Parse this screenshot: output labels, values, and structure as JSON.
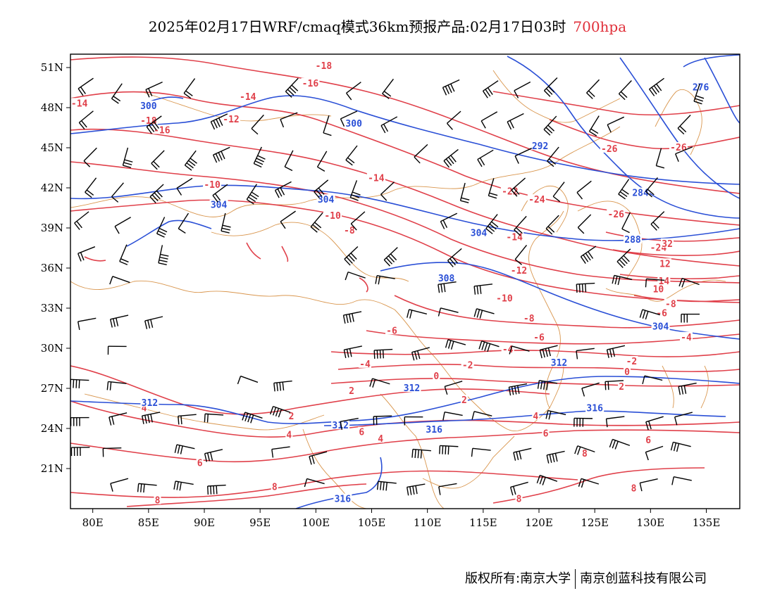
{
  "title": {
    "main": "2025年02月17日WRF/cmaq模式36km预报产品:02月17日03时",
    "level": "700hpa"
  },
  "colors": {
    "temperature": "#e0404a",
    "height": "#2a4fd6",
    "boundary": "#d9964e",
    "wind": "#000000"
  },
  "map": {
    "lon_range": [
      78,
      138
    ],
    "lat_range": [
      18,
      52
    ],
    "x_ticks": [
      "80E",
      "85E",
      "90E",
      "95E",
      "100E",
      "105E",
      "110E",
      "115E",
      "120E",
      "125E",
      "130E",
      "135E"
    ],
    "y_ticks": [
      "51N",
      "48N",
      "45N",
      "42N",
      "39N",
      "36N",
      "33N",
      "30N",
      "27N",
      "24N",
      "21N"
    ],
    "temperature_labels": [
      {
        "text": "-18",
        "lon": 100.7,
        "lat": 51.1
      },
      {
        "text": "-16",
        "lon": 99.5,
        "lat": 49.8
      },
      {
        "text": "-14",
        "lon": 93.9,
        "lat": 48.8
      },
      {
        "text": "-14",
        "lon": 78.8,
        "lat": 48.3
      },
      {
        "text": "-12",
        "lon": 92.4,
        "lat": 47.1
      },
      {
        "text": "-18",
        "lon": 85.0,
        "lat": 47.0
      },
      {
        "text": "-16",
        "lon": 86.2,
        "lat": 46.3
      },
      {
        "text": "-14",
        "lon": 105.4,
        "lat": 42.7
      },
      {
        "text": "-10",
        "lon": 90.7,
        "lat": 42.2
      },
      {
        "text": "-10",
        "lon": 101.5,
        "lat": 39.9
      },
      {
        "text": "-8",
        "lon": 103.0,
        "lat": 38.8
      },
      {
        "text": "-22",
        "lon": 117.4,
        "lat": 41.7
      },
      {
        "text": "-24",
        "lon": 119.8,
        "lat": 41.1
      },
      {
        "text": "-26",
        "lon": 126.3,
        "lat": 44.9
      },
      {
        "text": "-26",
        "lon": 132.5,
        "lat": 45.0
      },
      {
        "text": "-26",
        "lon": 126.9,
        "lat": 40.0
      },
      {
        "text": "-14",
        "lon": 117.8,
        "lat": 38.3
      },
      {
        "text": "-24",
        "lon": 130.7,
        "lat": 37.5
      },
      {
        "text": "-12",
        "lon": 118.2,
        "lat": 35.8
      },
      {
        "text": "-10",
        "lon": 116.9,
        "lat": 33.7
      },
      {
        "text": "-8",
        "lon": 119.1,
        "lat": 32.2
      },
      {
        "text": "-6",
        "lon": 120.0,
        "lat": 30.8
      },
      {
        "text": "-6",
        "lon": 106.8,
        "lat": 31.3
      },
      {
        "text": "-4",
        "lon": 117.2,
        "lat": 29.9
      },
      {
        "text": "-4",
        "lon": 104.4,
        "lat": 28.8
      },
      {
        "text": "-2",
        "lon": 113.6,
        "lat": 28.7
      },
      {
        "text": "-2",
        "lon": 128.3,
        "lat": 29.0
      },
      {
        "text": "0",
        "lon": 110.8,
        "lat": 27.9
      },
      {
        "text": "0",
        "lon": 127.9,
        "lat": 28.2
      },
      {
        "text": "2",
        "lon": 127.4,
        "lat": 27.1
      },
      {
        "text": "2",
        "lon": 103.2,
        "lat": 26.8
      },
      {
        "text": "2",
        "lon": 97.8,
        "lat": 24.9
      },
      {
        "text": "2",
        "lon": 113.3,
        "lat": 26.1
      },
      {
        "text": "4",
        "lon": 84.6,
        "lat": 25.5
      },
      {
        "text": "4",
        "lon": 97.6,
        "lat": 23.5
      },
      {
        "text": "4",
        "lon": 119.7,
        "lat": 24.9
      },
      {
        "text": "4",
        "lon": 105.8,
        "lat": 23.2
      },
      {
        "text": "6",
        "lon": 104.1,
        "lat": 23.7
      },
      {
        "text": "6",
        "lon": 120.6,
        "lat": 23.6
      },
      {
        "text": "6",
        "lon": 129.8,
        "lat": 23.1
      },
      {
        "text": "6",
        "lon": 89.6,
        "lat": 21.4
      },
      {
        "text": "8",
        "lon": 124.1,
        "lat": 22.1
      },
      {
        "text": "8",
        "lon": 96.3,
        "lat": 19.6
      },
      {
        "text": "8",
        "lon": 85.8,
        "lat": 18.6
      },
      {
        "text": "8",
        "lon": 118.2,
        "lat": 18.7
      },
      {
        "text": "8",
        "lon": 128.5,
        "lat": 19.5
      },
      {
        "text": "10",
        "lon": 130.7,
        "lat": 34.4
      },
      {
        "text": "12",
        "lon": 131.3,
        "lat": 36.3
      },
      {
        "text": "14",
        "lon": 131.2,
        "lat": 35.0
      },
      {
        "text": "-6",
        "lon": 131.0,
        "lat": 32.6
      },
      {
        "text": "-8",
        "lon": 131.8,
        "lat": 33.3
      },
      {
        "text": "-4",
        "lon": 133.2,
        "lat": 30.8
      },
      {
        "text": "32",
        "lon": 131.5,
        "lat": 37.8
      }
    ],
    "height_labels": [
      {
        "text": "300",
        "lon": 85.0,
        "lat": 48.1
      },
      {
        "text": "300",
        "lon": 103.4,
        "lat": 46.8
      },
      {
        "text": "292",
        "lon": 120.1,
        "lat": 45.1
      },
      {
        "text": "276",
        "lon": 134.5,
        "lat": 49.5
      },
      {
        "text": "284",
        "lon": 129.1,
        "lat": 41.6
      },
      {
        "text": "288",
        "lon": 128.4,
        "lat": 38.1
      },
      {
        "text": "304",
        "lon": 91.3,
        "lat": 40.7
      },
      {
        "text": "304",
        "lon": 100.9,
        "lat": 41.1
      },
      {
        "text": "304",
        "lon": 114.6,
        "lat": 38.6
      },
      {
        "text": "308",
        "lon": 111.7,
        "lat": 35.2
      },
      {
        "text": "304",
        "lon": 130.9,
        "lat": 31.6
      },
      {
        "text": "312",
        "lon": 121.8,
        "lat": 28.9
      },
      {
        "text": "312",
        "lon": 108.6,
        "lat": 27.0
      },
      {
        "text": "312",
        "lon": 85.1,
        "lat": 25.9
      },
      {
        "text": "312",
        "lon": 102.2,
        "lat": 24.2
      },
      {
        "text": "316",
        "lon": 110.6,
        "lat": 23.9
      },
      {
        "text": "316",
        "lon": 125.0,
        "lat": 25.5
      },
      {
        "text": "316",
        "lon": 102.4,
        "lat": 18.7
      }
    ]
  },
  "credit": {
    "owner": "版权所有:南京大学",
    "company": "南京创蓝科技有限公司"
  }
}
